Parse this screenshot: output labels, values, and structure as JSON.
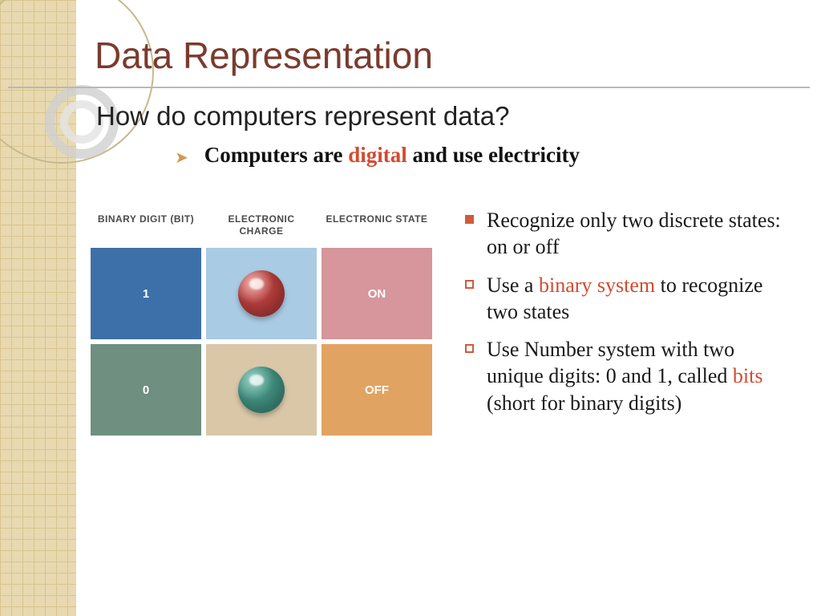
{
  "title": "Data Representation",
  "subtitle": "How do computers represent data?",
  "lead": {
    "pre": "Computers are ",
    "hl": "digital",
    "post": " and use electricity"
  },
  "colors": {
    "title": "#7a3b2e",
    "accent_text": "#d34b2f",
    "bullet_arrow": "#cf9a4d",
    "bullet_square": "#cf5b3b",
    "side_strip_bg": "#e8d9b0",
    "side_strip_grid": "#d8c48f",
    "underline": "#b8b8b8"
  },
  "diagram": {
    "type": "table",
    "headers": [
      "BINARY DIGIT (BIT)",
      "ELECTRONIC CHARGE",
      "ELECTRONIC STATE"
    ],
    "header_fontsize": 12,
    "cell_border_color": "#ffffff",
    "rows": [
      {
        "bit": {
          "label": "1",
          "bg": "#3d6fa9",
          "fg": "#ffffff"
        },
        "charge": {
          "bg": "#a9cbe3",
          "ball_color": "#b23c3a",
          "ball_highlight": "#f3b9b6"
        },
        "state": {
          "label": "ON",
          "bg": "#d6969b",
          "fg": "#ffffff"
        }
      },
      {
        "bit": {
          "label": "0",
          "bg": "#6f8f80",
          "fg": "#ffffff"
        },
        "charge": {
          "bg": "#d9c7a8",
          "ball_color": "#3f8d7d",
          "ball_highlight": "#9fd4c9"
        },
        "state": {
          "label": "OFF",
          "bg": "#e1a361",
          "fg": "#ffffff"
        }
      }
    ]
  },
  "bullets": [
    {
      "segments": [
        {
          "t": "Recognize only two discrete states: on or off"
        }
      ],
      "filled": true
    },
    {
      "segments": [
        {
          "t": "Use a "
        },
        {
          "t": "binary system",
          "hl": true
        },
        {
          "t": " to recognize two states"
        }
      ],
      "filled": false
    },
    {
      "segments": [
        {
          "t": "Use Number system with two unique digits: 0 and 1, called "
        },
        {
          "t": "bits",
          "hl": true
        },
        {
          "t": " (short for binary digits)"
        }
      ],
      "filled": false
    }
  ]
}
